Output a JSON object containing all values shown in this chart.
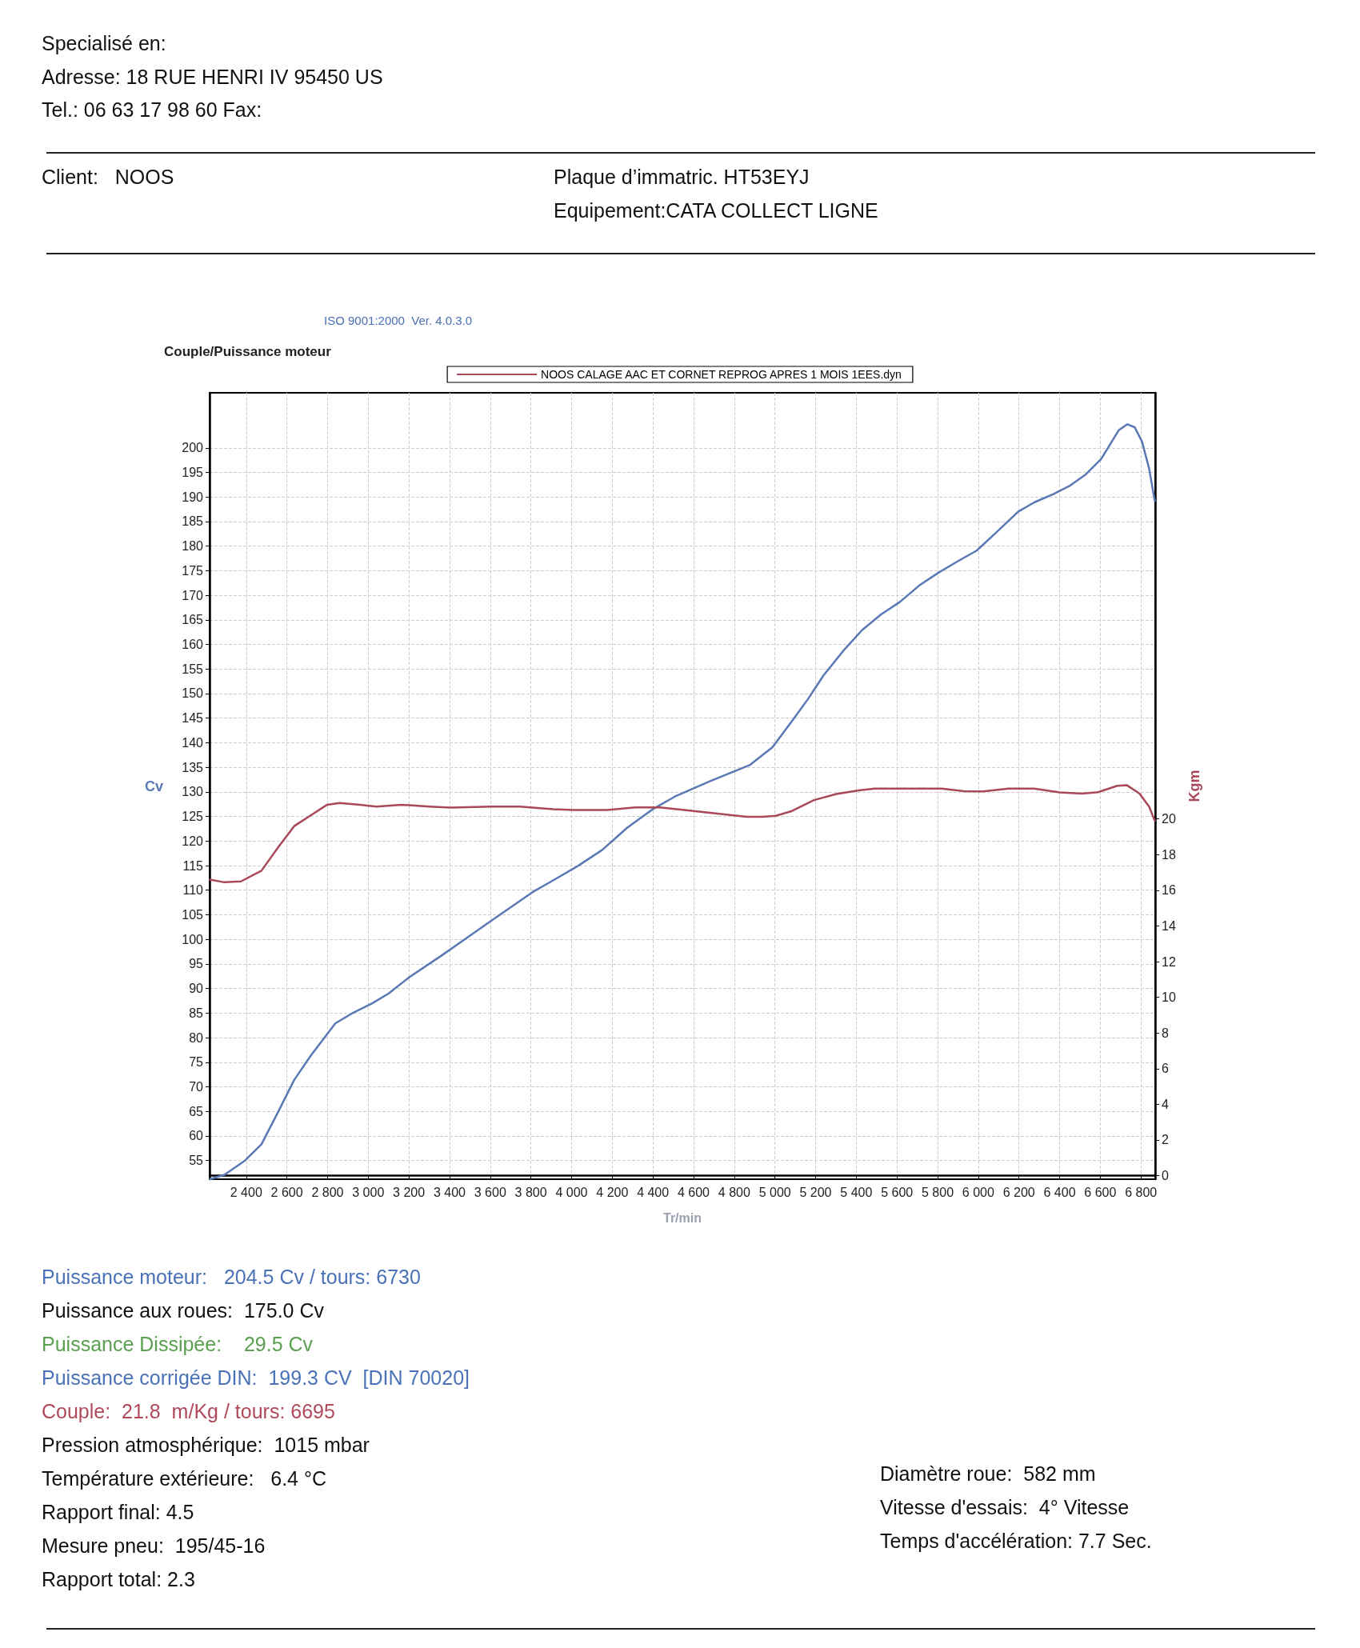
{
  "chart_data": {
    "type": "line",
    "title": "Couple/Puissance moteur",
    "xlabel": "Tr/min",
    "ylabel": "Cv",
    "y2label": "Kgm",
    "xlim": [
      2220,
      6870
    ],
    "xticks": [
      {
        "value": 2400,
        "label": "2 400"
      },
      {
        "value": 2600,
        "label": "2 600"
      },
      {
        "value": 2800,
        "label": "2 800"
      },
      {
        "value": 3000,
        "label": "3 000"
      },
      {
        "value": 3200,
        "label": "3 200"
      },
      {
        "value": 3400,
        "label": "3 400"
      },
      {
        "value": 3600,
        "label": "3 600"
      },
      {
        "value": 3800,
        "label": "3 800"
      },
      {
        "value": 4000,
        "label": "4 000"
      },
      {
        "value": 4200,
        "label": "4 200"
      },
      {
        "value": 4400,
        "label": "4 400"
      },
      {
        "value": 4600,
        "label": "4 600"
      },
      {
        "value": 4800,
        "label": "4 800"
      },
      {
        "value": 5000,
        "label": "5 000"
      },
      {
        "value": 5200,
        "label": "5 200"
      },
      {
        "value": 5400,
        "label": "5 400"
      },
      {
        "value": 5600,
        "label": "5 600"
      },
      {
        "value": 5800,
        "label": "5 800"
      },
      {
        "value": 6000,
        "label": "6 000"
      },
      {
        "value": 6200,
        "label": "6 200"
      },
      {
        "value": 6400,
        "label": "6 400"
      },
      {
        "value": 6600,
        "label": "6 600"
      },
      {
        "value": 6800,
        "label": "6 800"
      }
    ],
    "ylim": [
      51.2,
      211.2
    ],
    "yticks": [
      55,
      60,
      65,
      70,
      75,
      80,
      85,
      90,
      95,
      100,
      105,
      110,
      115,
      120,
      125,
      130,
      135,
      140,
      145,
      150,
      155,
      160,
      165,
      170,
      175,
      180,
      185,
      190,
      195,
      200
    ],
    "y2lim": [
      -0.2,
      43.9
    ],
    "y2ticks": [
      0,
      2,
      4,
      6,
      8,
      10,
      12,
      14,
      16,
      18,
      20
    ],
    "grid": true,
    "legend": "top",
    "marker": "none",
    "line_style": "solid",
    "series": [
      {
        "color": "#5a78b4",
        "x": [
          2222,
          2293,
          2394,
          2475,
          2556,
          2636,
          2717,
          2838,
          2919,
          3020,
          3101,
          3202,
          3364,
          3505,
          3606,
          3707,
          3808,
          3909,
          4030,
          4151,
          4273,
          4400,
          4515,
          4677,
          4878,
          4988,
          5082,
          5161,
          5239,
          5334,
          5428,
          5522,
          5616,
          5710,
          5804,
          5898,
          5992,
          6086,
          6196,
          6275,
          6369,
          6447,
          6526,
          6604,
          6691,
          6733,
          6769,
          6805,
          6840,
          6868
        ],
        "values": [
          51.2,
          52.1,
          55,
          58.3,
          64.8,
          71.4,
          76.3,
          82.9,
          84.9,
          87.0,
          89.0,
          92.3,
          96.8,
          100.9,
          103.8,
          106.7,
          109.6,
          112.0,
          114.9,
          118.2,
          122.7,
          126.5,
          129.2,
          132.1,
          135.5,
          139.1,
          144.3,
          148.8,
          153.7,
          158.6,
          162.9,
          166.1,
          168.7,
          172.0,
          174.6,
          176.9,
          179.1,
          182.7,
          187.0,
          188.9,
          190.6,
          192.2,
          194.5,
          197.7,
          203.6,
          204.8,
          204.2,
          201.3,
          195.8,
          189.2
        ]
      },
      {
        "name": "NOOS CALAGE AAC ET CORNET REPROG APRES 1 MOIS 1EES.dyn",
        "color": "#a84858",
        "axis": "y2",
        "x": [
          2222,
          2293,
          2374,
          2475,
          2556,
          2636,
          2717,
          2798,
          2859,
          2960,
          3040,
          3162,
          3303,
          3404,
          3606,
          3747,
          3909,
          4010,
          4172,
          4313,
          4434,
          4555,
          4717,
          4863,
          4941,
          5004,
          5082,
          5192,
          5302,
          5412,
          5490,
          5820,
          5930,
          6024,
          6149,
          6275,
          6400,
          6510,
          6589,
          6683,
          6730,
          6793,
          6840,
          6868
        ],
        "values": [
          16.6,
          16.45,
          16.5,
          17.1,
          18.4,
          19.6,
          20.2,
          20.8,
          20.9,
          20.8,
          20.7,
          20.8,
          20.7,
          20.64,
          20.7,
          20.7,
          20.55,
          20.5,
          20.5,
          20.65,
          20.65,
          20.5,
          20.3,
          20.12,
          20.12,
          20.18,
          20.44,
          21.06,
          21.4,
          21.6,
          21.7,
          21.7,
          21.56,
          21.55,
          21.7,
          21.7,
          21.49,
          21.42,
          21.5,
          21.86,
          21.9,
          21.42,
          20.7,
          19.9
        ]
      }
    ],
    "annotations": [
      "Specialisé en:",
      "Adresse: 18 RUE HENRI IV 95450 US",
      "Tel.: 06 63 17 98 60 Fax:",
      "Client:   NOOS",
      "Plaque d’immatric. HT53EYJ",
      "Equipement:CATA COLLECT LIGNE",
      "ISO 9001:2000  Ver. 4.0.3.0",
      "Puissance moteur:   204.5 Cv / tours: 6730",
      "Puissance aux roues:  175.0 Cv",
      "Puissance Dissipée:    29.5 Cv",
      "Puissance corrigée DIN:  199.3 CV  [DIN 70020]",
      "Couple:  21.8  m/Kg / tours: 6695",
      "Pression atmosphérique:  1015 mbar",
      "Température extérieure:   6.4 °C",
      "Rapport final: 4.5",
      "Mesure pneu:  195/45-16",
      "Rapport total: 2.3",
      "Diamètre roue:  582 mm",
      "Vitesse d'essais:  4° Vitesse",
      "Temps d'accélération: 7.7 Sec."
    ]
  }
}
